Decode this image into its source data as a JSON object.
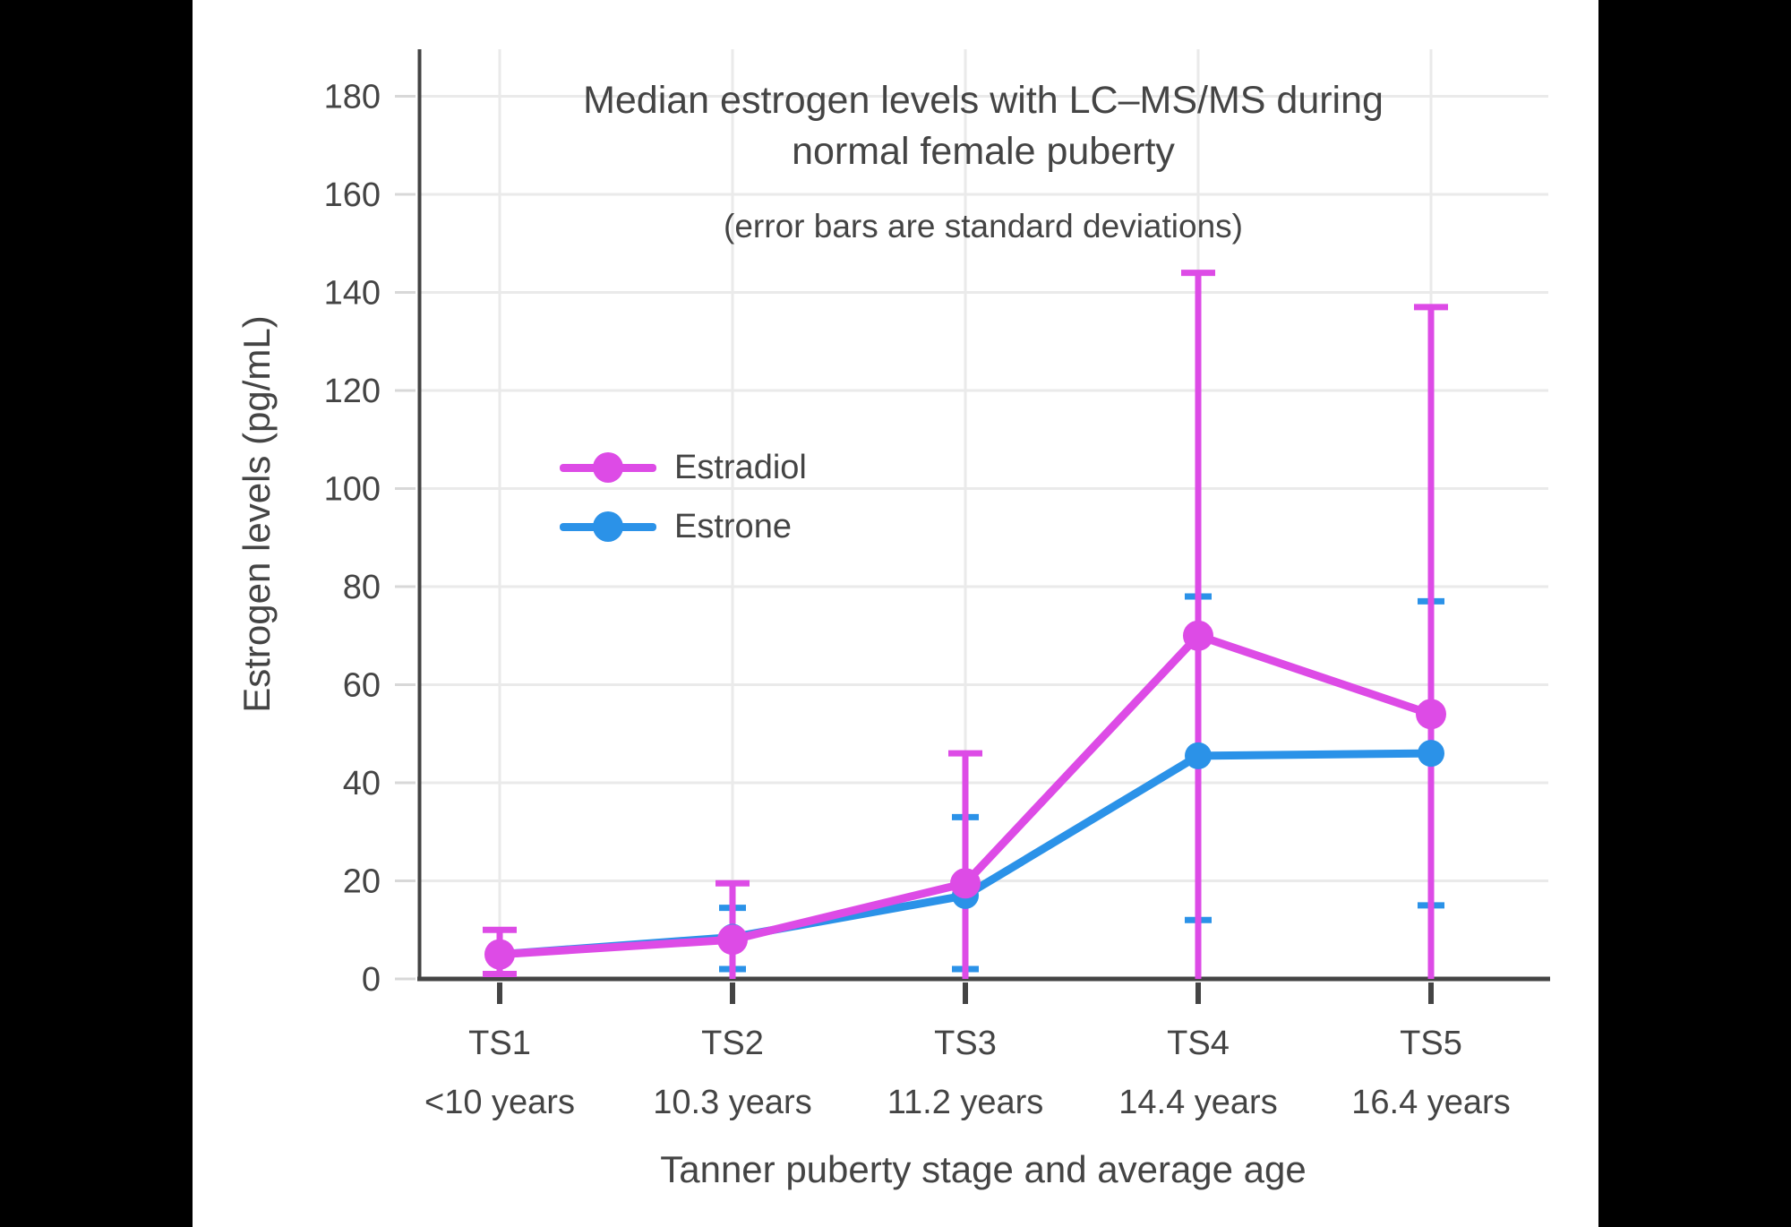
{
  "chart_data": {
    "type": "line",
    "title": "Median estrogen levels with LC–MS/MS during normal female puberty",
    "subtitle": "(error bars are standard deviations)",
    "xlabel": "Tanner puberty stage and average age",
    "ylabel": "Estrogen levels (pg/mL)",
    "ylim": [
      0,
      190
    ],
    "yticks": [
      0,
      20,
      40,
      60,
      80,
      100,
      120,
      140,
      160,
      180
    ],
    "grid": "on",
    "legend_position": "inside-middle-left",
    "categories": [
      "TS1",
      "TS2",
      "TS3",
      "TS4",
      "TS5"
    ],
    "category_sublabels": [
      "<10 years",
      "10.3 years",
      "11.2 years",
      "14.4 years",
      "16.4 years"
    ],
    "series": [
      {
        "name": "Estradiol",
        "color": "#DD4BE6",
        "values": [
          5,
          8,
          19.5,
          70,
          54
        ],
        "err_low": [
          1,
          0,
          0,
          0,
          0
        ],
        "err_high": [
          10,
          19.5,
          46,
          144,
          137
        ]
      },
      {
        "name": "Estrone",
        "color": "#2B92E8",
        "values": [
          5,
          8.5,
          17,
          45.5,
          46
        ],
        "err_low": [
          null,
          2,
          2,
          12,
          15
        ],
        "err_high": [
          null,
          14.5,
          33,
          78,
          77
        ]
      }
    ],
    "colors": {
      "axis": "#444444",
      "text": "#444444",
      "gridline": "#EAEAEA",
      "tick_minor": "#D8D8D8",
      "background": "#FFFFFF",
      "page_background": "#000000"
    }
  }
}
